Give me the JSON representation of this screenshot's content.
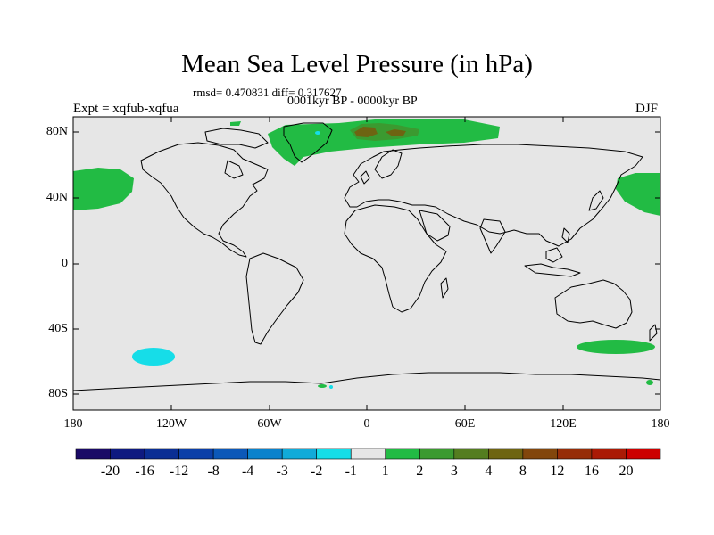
{
  "map": {
    "title": "Mean Sea Level Pressure (in hPa)",
    "stats": "rmsd= 0.470831 diff= 0.317627",
    "period": "0001kyr BP - 0000kyr BP",
    "expt": "Expt = xqfub-xqfua",
    "season": "DJF",
    "lat_labels": [
      "80N",
      "40N",
      "0",
      "40S",
      "80S"
    ],
    "lon_labels": [
      "180",
      "120W",
      "60W",
      "0",
      "60E",
      "120E",
      "180"
    ],
    "anomalies": [
      {
        "region": "Arctic / northern Eurasia",
        "sign": "positive",
        "max_class": "3-4"
      },
      {
        "region": "North Pacific (dateline)",
        "sign": "positive",
        "max_class": "1-2"
      },
      {
        "region": "South Pacific",
        "sign": "negative",
        "max_class": "-2--1"
      },
      {
        "region": "Southern Ocean south of Australia",
        "sign": "positive",
        "max_class": "1-2"
      }
    ]
  },
  "colorbar": {
    "labels": [
      "-20",
      "-16",
      "-12",
      "-8",
      "-4",
      "-3",
      "-2",
      "-1",
      "1",
      "2",
      "3",
      "4",
      "8",
      "12",
      "16",
      "20"
    ],
    "colors": [
      "#1a0a66",
      "#0e1a80",
      "#0a2e94",
      "#0b3fa8",
      "#0c58b8",
      "#0a82cc",
      "#11abd9",
      "#16dde8",
      "#e6e6e6",
      "#22bb44",
      "#3b9a30",
      "#547d20",
      "#6e6412",
      "#82460c",
      "#962d08",
      "#aa1a05",
      "#cc0000"
    ]
  }
}
